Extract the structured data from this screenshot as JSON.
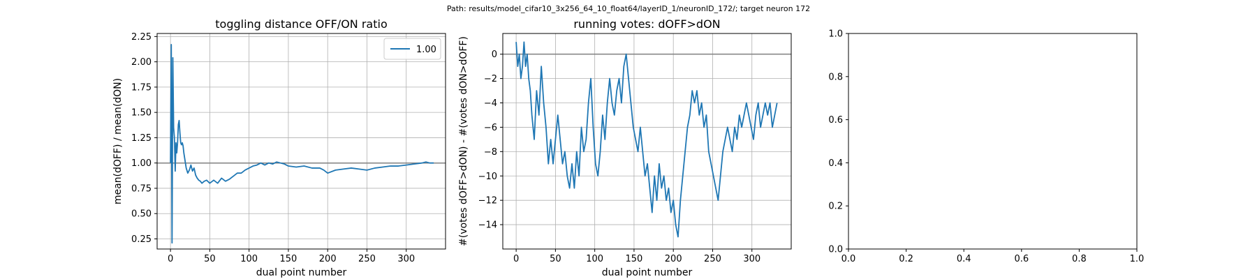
{
  "suptitle": "Path: results/model_cifar10_3x256_64_10_float64/layerID_1/neuronID_172/; target neuron 172",
  "chart_data": [
    {
      "type": "line",
      "title": "toggling distance OFF/ON ratio",
      "xlabel": "dual point number",
      "ylabel": "mean(dOFF) / mean(dON)",
      "xlim": [
        -17,
        350
      ],
      "ylim": [
        0.15,
        2.28
      ],
      "xticks": [
        0,
        50,
        100,
        150,
        200,
        250,
        300
      ],
      "yticks": [
        0.25,
        0.5,
        0.75,
        1.0,
        1.25,
        1.5,
        1.75,
        2.0,
        2.25
      ],
      "ytick_labels": [
        "0.25",
        "0.50",
        "0.75",
        "1.00",
        "1.25",
        "1.50",
        "1.75",
        "2.00",
        "2.25"
      ],
      "grid": true,
      "hline": 1.0,
      "legend": {
        "placement": "top-right",
        "entries": [
          "1.00"
        ]
      },
      "series": [
        {
          "name": "1.00",
          "color": "#1f77b4",
          "x": [
            0,
            1,
            2,
            3,
            4,
            5,
            6,
            7,
            8,
            9,
            10,
            11,
            12,
            13,
            14,
            15,
            16,
            17,
            18,
            19,
            20,
            22,
            24,
            26,
            28,
            30,
            32,
            34,
            36,
            38,
            40,
            43,
            46,
            50,
            55,
            60,
            65,
            70,
            75,
            80,
            85,
            90,
            95,
            100,
            105,
            110,
            115,
            120,
            125,
            130,
            135,
            140,
            145,
            150,
            160,
            170,
            180,
            190,
            195,
            200,
            210,
            220,
            230,
            240,
            250,
            260,
            270,
            280,
            290,
            300,
            310,
            320,
            325,
            330,
            335
          ],
          "values": [
            1.0,
            2.17,
            0.21,
            2.04,
            1.35,
            1.25,
            0.92,
            1.2,
            1.1,
            1.2,
            1.38,
            1.42,
            1.3,
            1.2,
            1.18,
            1.2,
            1.17,
            1.1,
            1.05,
            1.0,
            0.95,
            0.9,
            0.93,
            0.98,
            0.92,
            0.95,
            0.88,
            0.85,
            0.83,
            0.82,
            0.8,
            0.82,
            0.83,
            0.8,
            0.83,
            0.8,
            0.85,
            0.82,
            0.84,
            0.87,
            0.9,
            0.9,
            0.93,
            0.95,
            0.97,
            0.98,
            1.0,
            0.98,
            1.0,
            0.99,
            1.01,
            1.0,
            0.99,
            0.97,
            0.96,
            0.97,
            0.95,
            0.95,
            0.93,
            0.9,
            0.93,
            0.94,
            0.95,
            0.94,
            0.93,
            0.95,
            0.96,
            0.97,
            0.97,
            0.98,
            0.99,
            1.0,
            1.01,
            1.0,
            1.0
          ]
        }
      ]
    },
    {
      "type": "line",
      "title": "running votes: dOFF>dON",
      "xlabel": "dual point number",
      "ylabel": "#(votes dOFF>dON) - #(votes dON>dOFF)",
      "xlim": [
        -17,
        350
      ],
      "ylim": [
        -16,
        1.7
      ],
      "xticks": [
        0,
        50,
        100,
        150,
        200,
        250,
        300
      ],
      "yticks": [
        0,
        -2,
        -4,
        -6,
        -8,
        -10,
        -12,
        -14
      ],
      "ytick_labels": [
        "0",
        "−2",
        "−4",
        "−6",
        "−8",
        "−10",
        "−12",
        "−14"
      ],
      "grid": true,
      "hline": 0,
      "series": [
        {
          "color": "#1f77b4",
          "x": [
            0,
            2,
            4,
            6,
            8,
            10,
            12,
            14,
            16,
            18,
            20,
            23,
            26,
            29,
            32,
            35,
            38,
            41,
            44,
            47,
            50,
            53,
            56,
            59,
            62,
            65,
            68,
            71,
            74,
            77,
            80,
            83,
            86,
            89,
            92,
            95,
            98,
            101,
            104,
            107,
            110,
            113,
            116,
            119,
            122,
            125,
            128,
            131,
            134,
            137,
            140,
            143,
            146,
            149,
            152,
            155,
            158,
            161,
            164,
            167,
            170,
            173,
            176,
            179,
            182,
            185,
            188,
            191,
            194,
            197,
            200,
            203,
            206,
            209,
            212,
            215,
            218,
            221,
            224,
            227,
            230,
            233,
            236,
            239,
            242,
            245,
            248,
            251,
            254,
            257,
            260,
            263,
            266,
            269,
            272,
            275,
            278,
            281,
            284,
            287,
            290,
            293,
            296,
            299,
            302,
            305,
            308,
            311,
            314,
            317,
            320,
            323,
            326,
            329,
            332
          ],
          "values": [
            1,
            -1,
            0,
            -2,
            -1,
            1,
            -1,
            0,
            -2,
            -3,
            -5,
            -7,
            -3,
            -5,
            -1,
            -4,
            -6,
            -9,
            -7,
            -9,
            -7,
            -5,
            -7,
            -9,
            -8,
            -10,
            -11,
            -9,
            -11,
            -8,
            -10,
            -6,
            -8,
            -7,
            -4,
            -2,
            -6,
            -9,
            -10,
            -8,
            -5,
            -7,
            -4,
            -2,
            -4,
            -5,
            -3,
            -2,
            -4,
            -1,
            0,
            -2,
            -4,
            -6,
            -7,
            -8,
            -6,
            -8,
            -10,
            -9,
            -11,
            -13,
            -10,
            -12,
            -9,
            -11,
            -10,
            -12,
            -11,
            -13,
            -12,
            -14,
            -15,
            -12,
            -10,
            -8,
            -6,
            -5,
            -3,
            -4,
            -3,
            -5,
            -4,
            -6,
            -5,
            -8,
            -9,
            -10,
            -11,
            -12,
            -10,
            -8,
            -7,
            -6,
            -7,
            -8,
            -6,
            -7,
            -5,
            -6,
            -5,
            -4,
            -5,
            -6,
            -7,
            -5,
            -4,
            -6,
            -5,
            -4,
            -5,
            -4,
            -6,
            -5,
            -4
          ]
        }
      ]
    },
    {
      "type": "line",
      "title": "",
      "xlabel": "",
      "ylabel": "",
      "xlim": [
        0,
        1
      ],
      "ylim": [
        0,
        1
      ],
      "xticks": [
        0,
        0.2,
        0.4,
        0.6,
        0.8,
        1.0
      ],
      "xtick_labels": [
        "0.0",
        "0.2",
        "0.4",
        "0.6",
        "0.8",
        "1.0"
      ],
      "yticks": [
        0,
        0.2,
        0.4,
        0.6,
        0.8,
        1.0
      ],
      "ytick_labels": [
        "0.0",
        "0.2",
        "0.4",
        "0.6",
        "0.8",
        "1.0"
      ],
      "grid": false,
      "series": []
    }
  ]
}
